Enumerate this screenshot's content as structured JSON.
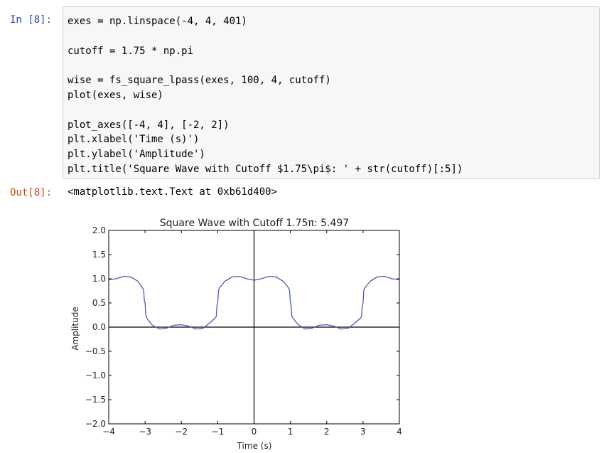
{
  "cell": {
    "in_prompt": "In [8]:",
    "out_prompt": "Out[8]:",
    "code_lines": [
      "exes = np.linspace(-4, 4, 401)",
      "",
      "cutoff = 1.75 * np.pi",
      "",
      "wise = fs_square_lpass(exes, 100, 4, cutoff)",
      "plot(exes, wise)",
      "",
      "plot_axes([-4, 4], [-2, 2])",
      "plt.xlabel('Time (s)')",
      "plt.ylabel('Amplitude')",
      "plt.title('Square Wave with Cutoff $1.75\\pi$: ' + str(cutoff)[:5])"
    ],
    "output_text": "<matplotlib.text.Text at 0xb61d400>"
  },
  "chart_data": {
    "type": "line",
    "title": "Square Wave with Cutoff 1.75π: 5.497",
    "xlabel": "Time (s)",
    "ylabel": "Amplitude",
    "xlim": [
      -4,
      4
    ],
    "ylim": [
      -2,
      2
    ],
    "xticks": [
      -4,
      -3,
      -2,
      -1,
      0,
      1,
      2,
      3,
      4
    ],
    "xtick_labels": [
      "−4",
      "−3",
      "−2",
      "−1",
      "0",
      "1",
      "2",
      "3",
      "4"
    ],
    "yticks": [
      2.0,
      1.5,
      1.0,
      0.5,
      0.0,
      -0.5,
      -1.0,
      -1.5,
      -2.0
    ],
    "ytick_labels": [
      "2.0",
      "1.5",
      "1.0",
      "0.5",
      "0.0",
      "−0.5",
      "−1.0",
      "−1.5",
      "−2.0"
    ],
    "grid": false,
    "axes_lines": true,
    "series": [
      {
        "color": "#4c5bab",
        "x": [
          -4.0,
          -3.8,
          -3.6,
          -3.4,
          -3.2,
          -3.08,
          -3.04,
          -3.02,
          -3.0,
          -2.98,
          -2.96,
          -2.92,
          -2.8,
          -2.6,
          -2.4,
          -2.2,
          -2.0,
          -1.8,
          -1.6,
          -1.4,
          -1.2,
          -1.08,
          -1.04,
          -1.02,
          -1.0,
          -0.98,
          -0.96,
          -0.92,
          -0.8,
          -0.6,
          -0.4,
          -0.2,
          0.0,
          0.2,
          0.4,
          0.6,
          0.8,
          0.92,
          0.96,
          0.98,
          1.0,
          1.02,
          1.04,
          1.08,
          1.2,
          1.4,
          1.6,
          1.8,
          2.0,
          2.2,
          2.4,
          2.6,
          2.8,
          2.92,
          2.96,
          2.98,
          3.0,
          3.02,
          3.04,
          3.08,
          3.2,
          3.4,
          3.6,
          3.8,
          4.0
        ],
        "y": [
          0.98,
          1.0,
          1.05,
          1.04,
          0.95,
          0.82,
          0.78,
          0.55,
          0.5,
          0.25,
          0.2,
          0.15,
          0.04,
          -0.04,
          -0.02,
          0.04,
          0.05,
          0.02,
          -0.04,
          -0.02,
          0.1,
          0.18,
          0.22,
          0.45,
          0.5,
          0.75,
          0.8,
          0.84,
          0.95,
          1.04,
          1.05,
          1.0,
          0.97,
          1.0,
          1.05,
          1.04,
          0.95,
          0.84,
          0.8,
          0.75,
          0.5,
          0.45,
          0.22,
          0.18,
          0.06,
          -0.04,
          -0.02,
          0.04,
          0.05,
          0.02,
          -0.04,
          -0.02,
          0.1,
          0.18,
          0.22,
          0.45,
          0.5,
          0.75,
          0.8,
          0.84,
          0.95,
          1.04,
          1.05,
          1.0,
          0.98
        ]
      }
    ]
  }
}
